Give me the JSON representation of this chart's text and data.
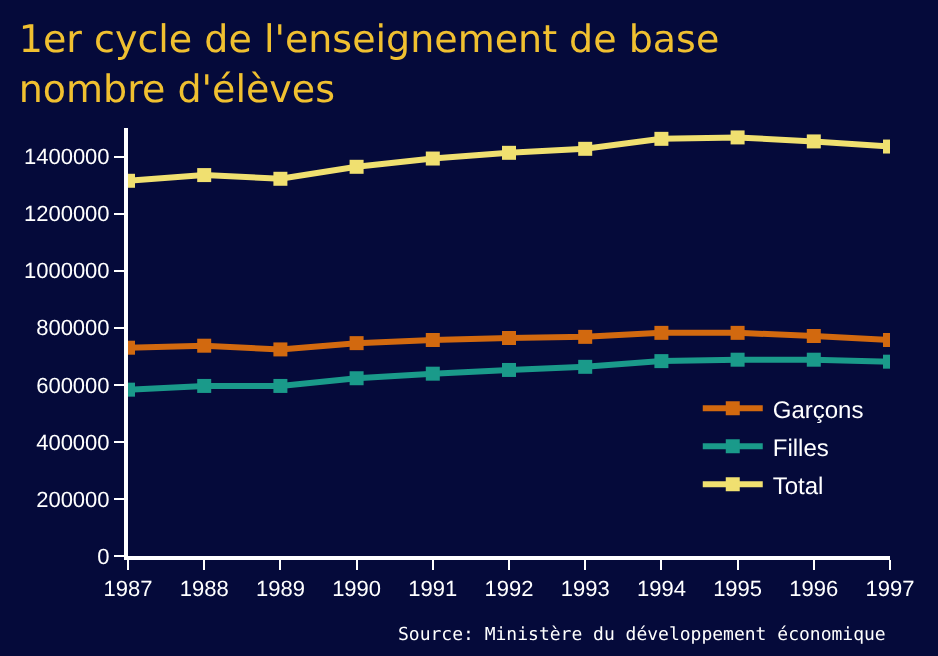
{
  "chart_data": {
    "type": "line",
    "title": "1er cycle de l'enseignement de base\nnombre d'élèves",
    "x": [
      1987,
      1988,
      1989,
      1990,
      1991,
      1992,
      1993,
      1994,
      1995,
      1996,
      1997
    ],
    "series": [
      {
        "name": "Garçons",
        "color": "#d2690f",
        "values": [
          730000,
          737000,
          724000,
          746000,
          757000,
          764000,
          768000,
          782000,
          782000,
          771000,
          757000
        ]
      },
      {
        "name": "Filles",
        "color": "#1a9a8a",
        "values": [
          583000,
          596000,
          596000,
          623000,
          639000,
          652000,
          663000,
          683000,
          688000,
          688000,
          681000
        ]
      },
      {
        "name": "Total",
        "color": "#f0e070",
        "values": [
          1315000,
          1335000,
          1322000,
          1364000,
          1393000,
          1413000,
          1427000,
          1462000,
          1467000,
          1453000,
          1435000
        ]
      }
    ],
    "xlim": [
      1987,
      1997
    ],
    "xticks": [
      1987,
      1988,
      1989,
      1990,
      1991,
      1992,
      1993,
      1994,
      1995,
      1996,
      1997
    ],
    "ylim": [
      0,
      1500000
    ],
    "yticks": [
      0,
      200000,
      400000,
      600000,
      800000,
      1000000,
      1200000,
      1400000
    ],
    "marker": "square",
    "legend": "bottom right",
    "annotations": [
      "Source: Ministère du développement économique"
    ]
  }
}
